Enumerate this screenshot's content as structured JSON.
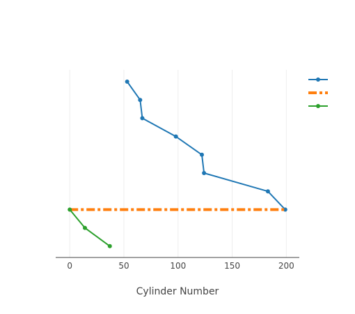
{
  "chart_data": {
    "type": "line",
    "title": "",
    "xlabel": "Cylinder Number",
    "ylabel": "",
    "xlim": [
      -13,
      212
    ],
    "xticks": [
      0,
      50,
      100,
      150,
      200
    ],
    "grid": "vertical",
    "legend_position": "top-right",
    "series": [
      {
        "color": "#1f77b4",
        "style": "solid-markers",
        "points": [
          [
            53,
            0
          ],
          [
            65,
            1
          ],
          [
            67,
            2
          ],
          [
            98,
            3
          ],
          [
            122,
            4
          ],
          [
            124,
            5
          ],
          [
            183,
            6
          ],
          [
            199,
            7
          ]
        ]
      },
      {
        "color": "#ff7f0e",
        "style": "dashdot",
        "points": [
          [
            0,
            7
          ],
          [
            199,
            7
          ]
        ]
      },
      {
        "color": "#2ca02c",
        "style": "solid-markers",
        "points": [
          [
            0,
            7
          ],
          [
            14,
            8
          ],
          [
            37,
            9
          ]
        ]
      }
    ]
  }
}
